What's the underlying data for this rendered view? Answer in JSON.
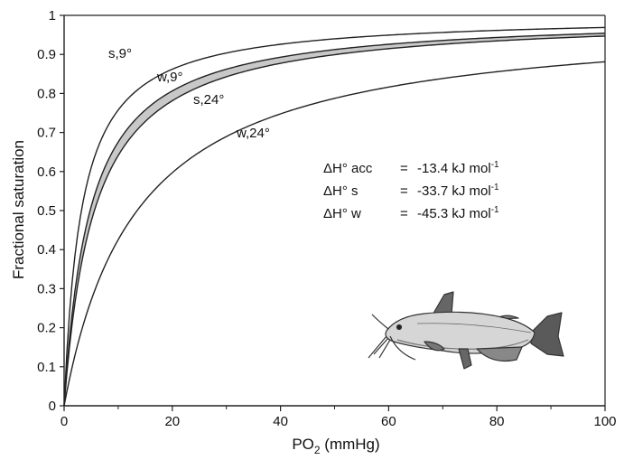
{
  "chart_data": {
    "type": "line",
    "xlabel": "PO",
    "xlabel_sub": "2",
    "xlabel_unit": " (mmHg)",
    "ylabel": "Fractional saturation",
    "xlim": [
      0,
      100
    ],
    "ylim": [
      0,
      1
    ],
    "x_ticks": [
      "0",
      "20",
      "40",
      "60",
      "80",
      "100"
    ],
    "x_tick_values": [
      0,
      20,
      40,
      60,
      80,
      100
    ],
    "y_ticks": [
      "0",
      "0.1",
      "0.2",
      "0.3",
      "0.4",
      "0.5",
      "0.6",
      "0.7",
      "0.8",
      "0.9",
      "1"
    ],
    "y_tick_values": [
      0,
      0.1,
      0.2,
      0.3,
      0.4,
      0.5,
      0.6,
      0.7,
      0.8,
      0.9,
      1.0
    ],
    "series": [
      {
        "name": "s,9°",
        "p50": 3.2,
        "x": [
          0,
          5,
          10,
          15,
          20,
          40,
          60,
          80,
          100
        ],
        "values": [
          0,
          0.61,
          0.76,
          0.82,
          0.86,
          0.93,
          0.96,
          0.97,
          0.98
        ]
      },
      {
        "name": "w,9°",
        "p50": 4.8,
        "x": [
          0,
          5,
          10,
          15,
          20,
          40,
          60,
          80,
          100
        ],
        "values": [
          0,
          0.51,
          0.68,
          0.76,
          0.81,
          0.9,
          0.93,
          0.95,
          0.96
        ]
      },
      {
        "name": "s,24°",
        "p50": 5.6,
        "x": [
          0,
          5,
          10,
          15,
          20,
          40,
          60,
          80,
          100
        ],
        "values": [
          0,
          0.47,
          0.64,
          0.73,
          0.78,
          0.88,
          0.92,
          0.94,
          0.95
        ]
      },
      {
        "name": "w,24°",
        "p50": 13.5,
        "x": [
          0,
          5,
          10,
          15,
          20,
          40,
          60,
          80,
          100
        ],
        "values": [
          0,
          0.27,
          0.43,
          0.53,
          0.6,
          0.75,
          0.82,
          0.86,
          0.88
        ]
      }
    ],
    "shaded_between": [
      "w,9°",
      "s,24°"
    ],
    "shade_color": "#c8c8c8",
    "line_color": "#222222",
    "annotations": [
      {
        "label": "ΔH° acc",
        "eq": "=",
        "value": "-13.4 kJ mol",
        "sup": "-1"
      },
      {
        "label": "ΔH° s",
        "eq": "=",
        "value": "-33.7 kJ mol",
        "sup": "-1"
      },
      {
        "label": "ΔH° w",
        "eq": "=",
        "value": "-45.3 kJ mol",
        "sup": "-1"
      }
    ],
    "illustration": "catfish"
  }
}
